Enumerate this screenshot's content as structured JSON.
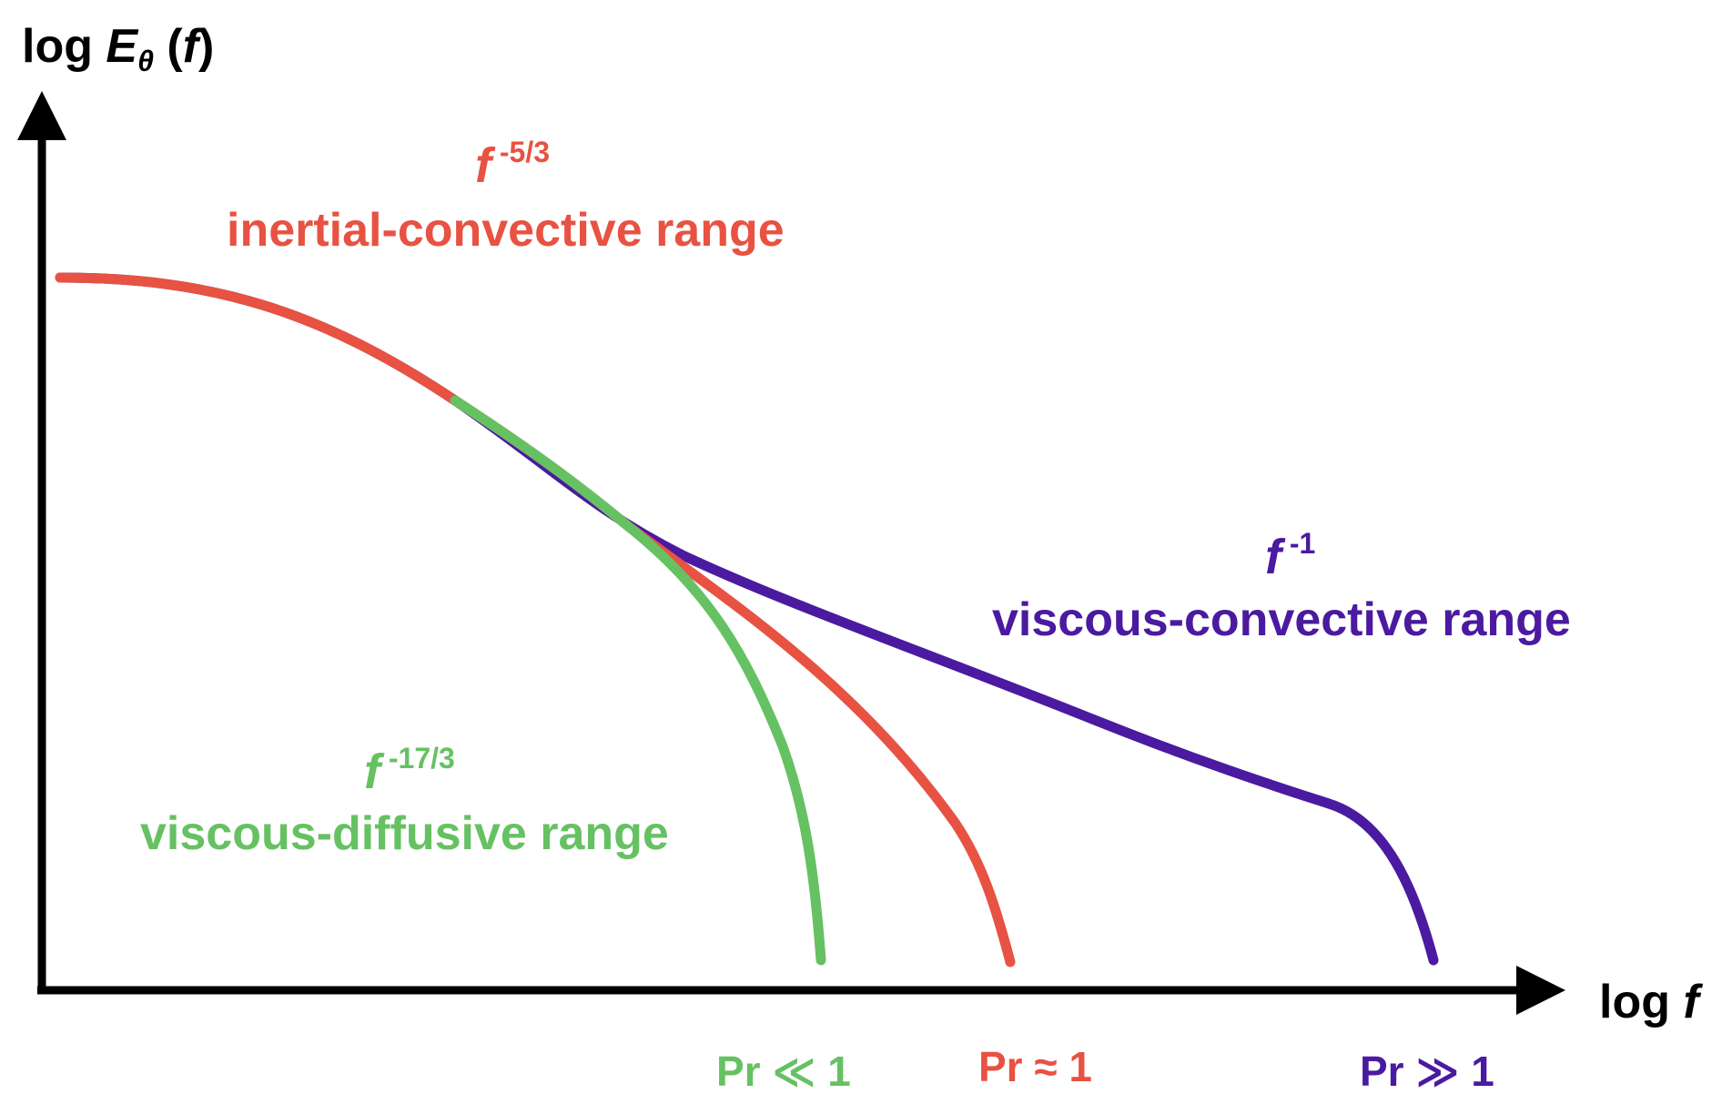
{
  "colors": {
    "axis": "#000000",
    "low_pr": "#66c163",
    "unity_pr": "#e85242",
    "high_pr": "#4a1aa0"
  },
  "axes": {
    "y_label": {
      "prefix": "log ",
      "symbol": "E",
      "subscript": "θ",
      "arg_open": " (",
      "arg": "f",
      "arg_close": ")"
    },
    "x_label": {
      "prefix": "log ",
      "symbol": "f"
    }
  },
  "ranges": {
    "inertial_convective": {
      "base": "f",
      "exponent": " -5/3",
      "name": "inertial-convective range"
    },
    "viscous_convective": {
      "base": "f",
      "exponent": " -1",
      "name": "viscous-convective range"
    },
    "viscous_diffusive": {
      "base": "f",
      "exponent": " -17/3",
      "name": "viscous-diffusive range"
    }
  },
  "curves": {
    "low_pr": {
      "label": "Pr ≪ 1"
    },
    "unity_pr": {
      "label": "Pr ≈ 1"
    },
    "high_pr": {
      "label": "Pr ≫ 1"
    }
  }
}
